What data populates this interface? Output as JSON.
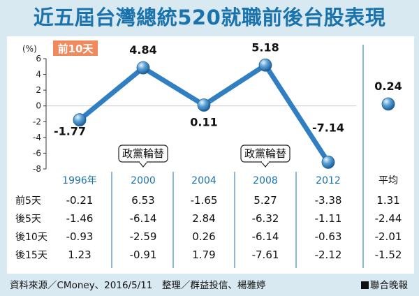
{
  "title": "近五屆台灣總統520就職前後台股表現",
  "badge": "前10天",
  "chart_data": {
    "type": "line",
    "ylabel": "(%)",
    "ylim": [
      -8,
      6
    ],
    "yticks": [
      "6",
      "4",
      "2",
      "0",
      "-2",
      "-4",
      "-6",
      "-8"
    ],
    "categories": [
      "1996年",
      "2000",
      "2004",
      "2008",
      "2012",
      "平均"
    ],
    "series": [
      {
        "values": [
          -1.77,
          4.84,
          0.11,
          5.18,
          -7.14,
          0.24
        ]
      }
    ],
    "value_labels": [
      "-1.77",
      "4.84",
      "0.11",
      "5.18",
      "-7.14",
      "0.24"
    ],
    "annotations": [
      {
        "category": "2000",
        "text": "政黨輪替"
      },
      {
        "category": "2008",
        "text": "政黨輪替"
      }
    ]
  },
  "table": {
    "rows": [
      {
        "label": "前5天",
        "values": [
          "-0.21",
          "6.53",
          "-1.65",
          "5.27",
          "-3.38",
          "1.31"
        ]
      },
      {
        "label": "後5天",
        "values": [
          "-1.46",
          "-6.14",
          "2.84",
          "-6.32",
          "-1.11",
          "-2.44"
        ]
      },
      {
        "label": "後10天",
        "values": [
          "-0.93",
          "-2.59",
          "0.26",
          "-6.14",
          "-0.63",
          "-2.01"
        ]
      },
      {
        "label": "後15天",
        "values": [
          "1.23",
          "-0.91",
          "1.79",
          "-7.61",
          "-2.12",
          "-1.52"
        ]
      }
    ]
  },
  "footer": {
    "source": "資料來源／CMoney、2016/5/11　整理／群益投信、楊雅婷",
    "publisher": "聯合晚報"
  },
  "colors": {
    "title": "#1a73ad",
    "line": "#2f7fc2",
    "year": "#1a73ad",
    "badge": "#f08a5d",
    "background": "#d9e9f2"
  }
}
